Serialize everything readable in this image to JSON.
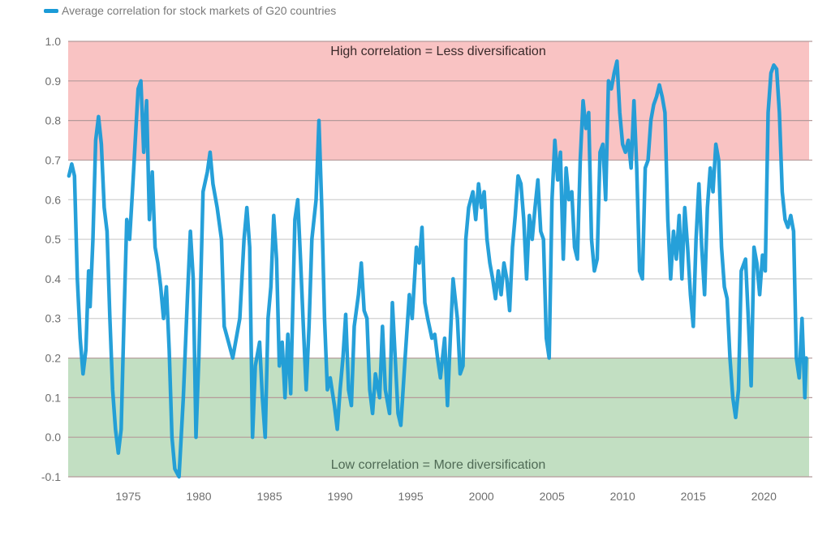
{
  "chart_data": {
    "type": "line",
    "title": "",
    "legend": {
      "position": "top-left",
      "entries": [
        {
          "label": "Average correlation for stock markets of G20 countries",
          "color": "#1a9bd7"
        }
      ]
    },
    "xlabel": "",
    "ylabel": "",
    "xlim": [
      1970.75,
      2023.2
    ],
    "ylim": [
      -0.1,
      1.0
    ],
    "x_ticks": [
      1975,
      1980,
      1985,
      1990,
      1995,
      2000,
      2005,
      2010,
      2015,
      2020
    ],
    "y_ticks": [
      -0.1,
      0.0,
      0.1,
      0.2,
      0.3,
      0.4,
      0.5,
      0.6,
      0.7,
      0.8,
      0.9,
      1.0
    ],
    "y_tick_labels": [
      "-0.1",
      "0.0",
      "0.1",
      "0.2",
      "0.3",
      "0.4",
      "0.5",
      "0.6",
      "0.7",
      "0.8",
      "0.9",
      "1.0"
    ],
    "grid": true,
    "bands": [
      {
        "name": "high-correlation-band",
        "from": 0.7,
        "to": 1.0,
        "color": "#f9c3c3",
        "label": "High correlation = Less diversification"
      },
      {
        "name": "low-correlation-band",
        "from": -0.1,
        "to": 0.2,
        "color": "#c2dfc2",
        "label": "Low correlation = More diversification"
      }
    ],
    "series": [
      {
        "name": "Average correlation for stock markets of G20 countries",
        "color": "#1a9bd7",
        "points": [
          [
            1970.8,
            0.66
          ],
          [
            1971.0,
            0.69
          ],
          [
            1971.2,
            0.66
          ],
          [
            1971.4,
            0.4
          ],
          [
            1971.6,
            0.25
          ],
          [
            1971.8,
            0.16
          ],
          [
            1972.0,
            0.22
          ],
          [
            1972.2,
            0.42
          ],
          [
            1972.3,
            0.33
          ],
          [
            1972.5,
            0.5
          ],
          [
            1972.7,
            0.75
          ],
          [
            1972.9,
            0.81
          ],
          [
            1973.1,
            0.74
          ],
          [
            1973.3,
            0.58
          ],
          [
            1973.5,
            0.52
          ],
          [
            1973.7,
            0.3
          ],
          [
            1973.9,
            0.12
          ],
          [
            1974.1,
            0.02
          ],
          [
            1974.3,
            -0.04
          ],
          [
            1974.5,
            0.02
          ],
          [
            1974.7,
            0.3
          ],
          [
            1974.9,
            0.55
          ],
          [
            1975.1,
            0.5
          ],
          [
            1975.3,
            0.62
          ],
          [
            1975.5,
            0.75
          ],
          [
            1975.7,
            0.88
          ],
          [
            1975.9,
            0.9
          ],
          [
            1976.1,
            0.72
          ],
          [
            1976.3,
            0.85
          ],
          [
            1976.5,
            0.55
          ],
          [
            1976.7,
            0.67
          ],
          [
            1976.9,
            0.48
          ],
          [
            1977.1,
            0.44
          ],
          [
            1977.3,
            0.38
          ],
          [
            1977.5,
            0.3
          ],
          [
            1977.7,
            0.38
          ],
          [
            1977.9,
            0.22
          ],
          [
            1978.1,
            0.0
          ],
          [
            1978.3,
            -0.08
          ],
          [
            1978.6,
            -0.1
          ],
          [
            1978.9,
            0.1
          ],
          [
            1979.2,
            0.36
          ],
          [
            1979.4,
            0.52
          ],
          [
            1979.6,
            0.4
          ],
          [
            1979.8,
            0.0
          ],
          [
            1980.0,
            0.2
          ],
          [
            1980.3,
            0.62
          ],
          [
            1980.6,
            0.67
          ],
          [
            1980.8,
            0.72
          ],
          [
            1981.0,
            0.64
          ],
          [
            1981.3,
            0.58
          ],
          [
            1981.6,
            0.5
          ],
          [
            1981.8,
            0.28
          ],
          [
            1982.1,
            0.24
          ],
          [
            1982.4,
            0.2
          ],
          [
            1982.7,
            0.26
          ],
          [
            1982.9,
            0.3
          ],
          [
            1983.2,
            0.5
          ],
          [
            1983.4,
            0.58
          ],
          [
            1983.6,
            0.48
          ],
          [
            1983.8,
            0.0
          ],
          [
            1984.0,
            0.18
          ],
          [
            1984.3,
            0.24
          ],
          [
            1984.5,
            0.1
          ],
          [
            1984.7,
            0.0
          ],
          [
            1984.9,
            0.3
          ],
          [
            1985.1,
            0.38
          ],
          [
            1985.3,
            0.56
          ],
          [
            1985.5,
            0.45
          ],
          [
            1985.7,
            0.18
          ],
          [
            1985.9,
            0.24
          ],
          [
            1986.1,
            0.1
          ],
          [
            1986.3,
            0.26
          ],
          [
            1986.5,
            0.11
          ],
          [
            1986.8,
            0.55
          ],
          [
            1987.0,
            0.6
          ],
          [
            1987.2,
            0.45
          ],
          [
            1987.4,
            0.28
          ],
          [
            1987.6,
            0.12
          ],
          [
            1987.8,
            0.28
          ],
          [
            1988.0,
            0.5
          ],
          [
            1988.3,
            0.6
          ],
          [
            1988.5,
            0.8
          ],
          [
            1988.7,
            0.58
          ],
          [
            1988.9,
            0.3
          ],
          [
            1989.1,
            0.12
          ],
          [
            1989.3,
            0.15
          ],
          [
            1989.6,
            0.08
          ],
          [
            1989.8,
            0.02
          ],
          [
            1990.0,
            0.12
          ],
          [
            1990.2,
            0.2
          ],
          [
            1990.4,
            0.31
          ],
          [
            1990.6,
            0.12
          ],
          [
            1990.8,
            0.08
          ],
          [
            1991.0,
            0.28
          ],
          [
            1991.3,
            0.36
          ],
          [
            1991.5,
            0.44
          ],
          [
            1991.7,
            0.32
          ],
          [
            1991.9,
            0.3
          ],
          [
            1992.1,
            0.12
          ],
          [
            1992.3,
            0.06
          ],
          [
            1992.5,
            0.16
          ],
          [
            1992.8,
            0.1
          ],
          [
            1993.0,
            0.28
          ],
          [
            1993.2,
            0.12
          ],
          [
            1993.5,
            0.06
          ],
          [
            1993.7,
            0.34
          ],
          [
            1993.9,
            0.2
          ],
          [
            1994.1,
            0.06
          ],
          [
            1994.3,
            0.03
          ],
          [
            1994.6,
            0.2
          ],
          [
            1994.9,
            0.36
          ],
          [
            1995.1,
            0.3
          ],
          [
            1995.4,
            0.48
          ],
          [
            1995.6,
            0.44
          ],
          [
            1995.8,
            0.53
          ],
          [
            1996.0,
            0.34
          ],
          [
            1996.2,
            0.3
          ],
          [
            1996.5,
            0.25
          ],
          [
            1996.7,
            0.26
          ],
          [
            1996.9,
            0.2
          ],
          [
            1997.1,
            0.15
          ],
          [
            1997.4,
            0.25
          ],
          [
            1997.6,
            0.08
          ],
          [
            1997.8,
            0.25
          ],
          [
            1998.0,
            0.4
          ],
          [
            1998.3,
            0.3
          ],
          [
            1998.5,
            0.16
          ],
          [
            1998.7,
            0.18
          ],
          [
            1998.9,
            0.5
          ],
          [
            1999.1,
            0.58
          ],
          [
            1999.4,
            0.62
          ],
          [
            1999.6,
            0.55
          ],
          [
            1999.8,
            0.64
          ],
          [
            2000.0,
            0.58
          ],
          [
            2000.2,
            0.62
          ],
          [
            2000.4,
            0.5
          ],
          [
            2000.6,
            0.44
          ],
          [
            2000.8,
            0.4
          ],
          [
            2001.0,
            0.35
          ],
          [
            2001.2,
            0.42
          ],
          [
            2001.4,
            0.36
          ],
          [
            2001.6,
            0.44
          ],
          [
            2001.8,
            0.4
          ],
          [
            2002.0,
            0.32
          ],
          [
            2002.2,
            0.48
          ],
          [
            2002.4,
            0.56
          ],
          [
            2002.6,
            0.66
          ],
          [
            2002.8,
            0.64
          ],
          [
            2003.0,
            0.55
          ],
          [
            2003.2,
            0.4
          ],
          [
            2003.4,
            0.56
          ],
          [
            2003.6,
            0.5
          ],
          [
            2003.8,
            0.58
          ],
          [
            2004.0,
            0.65
          ],
          [
            2004.2,
            0.52
          ],
          [
            2004.4,
            0.5
          ],
          [
            2004.6,
            0.25
          ],
          [
            2004.8,
            0.2
          ],
          [
            2005.0,
            0.6
          ],
          [
            2005.2,
            0.75
          ],
          [
            2005.4,
            0.65
          ],
          [
            2005.6,
            0.72
          ],
          [
            2005.8,
            0.45
          ],
          [
            2006.0,
            0.68
          ],
          [
            2006.2,
            0.6
          ],
          [
            2006.4,
            0.62
          ],
          [
            2006.6,
            0.48
          ],
          [
            2006.8,
            0.45
          ],
          [
            2007.0,
            0.7
          ],
          [
            2007.2,
            0.85
          ],
          [
            2007.4,
            0.78
          ],
          [
            2007.6,
            0.82
          ],
          [
            2007.8,
            0.5
          ],
          [
            2008.0,
            0.42
          ],
          [
            2008.2,
            0.45
          ],
          [
            2008.4,
            0.72
          ],
          [
            2008.6,
            0.74
          ],
          [
            2008.8,
            0.6
          ],
          [
            2009.0,
            0.9
          ],
          [
            2009.2,
            0.88
          ],
          [
            2009.4,
            0.92
          ],
          [
            2009.6,
            0.95
          ],
          [
            2009.8,
            0.82
          ],
          [
            2010.0,
            0.74
          ],
          [
            2010.2,
            0.72
          ],
          [
            2010.4,
            0.75
          ],
          [
            2010.6,
            0.68
          ],
          [
            2010.8,
            0.85
          ],
          [
            2011.0,
            0.68
          ],
          [
            2011.2,
            0.42
          ],
          [
            2011.4,
            0.4
          ],
          [
            2011.6,
            0.68
          ],
          [
            2011.8,
            0.7
          ],
          [
            2012.0,
            0.8
          ],
          [
            2012.2,
            0.84
          ],
          [
            2012.4,
            0.86
          ],
          [
            2012.6,
            0.89
          ],
          [
            2012.8,
            0.86
          ],
          [
            2013.0,
            0.82
          ],
          [
            2013.2,
            0.55
          ],
          [
            2013.4,
            0.4
          ],
          [
            2013.6,
            0.52
          ],
          [
            2013.8,
            0.45
          ],
          [
            2014.0,
            0.56
          ],
          [
            2014.2,
            0.4
          ],
          [
            2014.4,
            0.58
          ],
          [
            2014.6,
            0.48
          ],
          [
            2014.8,
            0.36
          ],
          [
            2015.0,
            0.28
          ],
          [
            2015.2,
            0.5
          ],
          [
            2015.4,
            0.64
          ],
          [
            2015.6,
            0.48
          ],
          [
            2015.8,
            0.36
          ],
          [
            2016.0,
            0.58
          ],
          [
            2016.2,
            0.68
          ],
          [
            2016.4,
            0.62
          ],
          [
            2016.6,
            0.74
          ],
          [
            2016.8,
            0.7
          ],
          [
            2017.0,
            0.48
          ],
          [
            2017.2,
            0.38
          ],
          [
            2017.4,
            0.35
          ],
          [
            2017.6,
            0.2
          ],
          [
            2017.8,
            0.1
          ],
          [
            2018.0,
            0.05
          ],
          [
            2018.2,
            0.12
          ],
          [
            2018.4,
            0.42
          ],
          [
            2018.7,
            0.45
          ],
          [
            2018.9,
            0.3
          ],
          [
            2019.1,
            0.13
          ],
          [
            2019.3,
            0.48
          ],
          [
            2019.5,
            0.44
          ],
          [
            2019.7,
            0.36
          ],
          [
            2019.9,
            0.46
          ],
          [
            2020.1,
            0.42
          ],
          [
            2020.3,
            0.82
          ],
          [
            2020.5,
            0.92
          ],
          [
            2020.7,
            0.94
          ],
          [
            2020.9,
            0.93
          ],
          [
            2021.1,
            0.82
          ],
          [
            2021.3,
            0.62
          ],
          [
            2021.5,
            0.55
          ],
          [
            2021.7,
            0.53
          ],
          [
            2021.9,
            0.56
          ],
          [
            2022.1,
            0.52
          ],
          [
            2022.3,
            0.2
          ],
          [
            2022.5,
            0.15
          ],
          [
            2022.7,
            0.3
          ],
          [
            2022.9,
            0.1
          ],
          [
            2023.0,
            0.2
          ]
        ]
      }
    ]
  }
}
